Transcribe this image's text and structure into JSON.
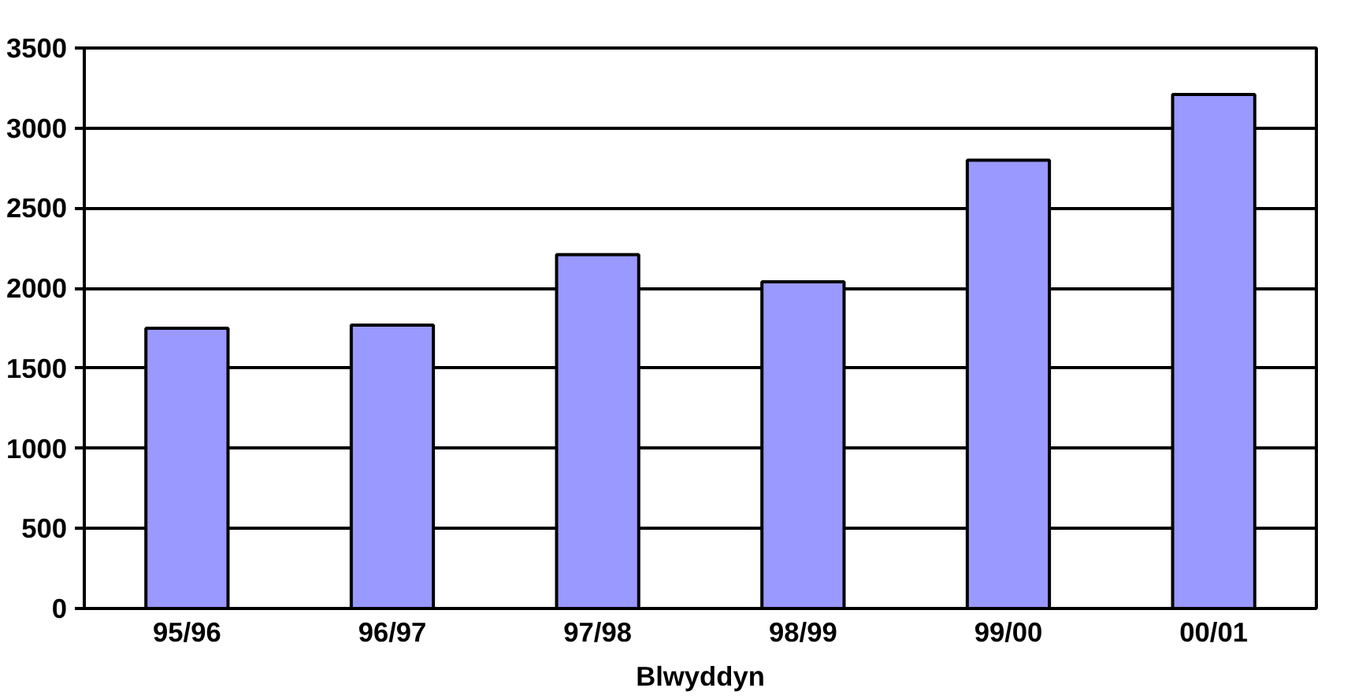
{
  "chart_data": {
    "type": "bar",
    "xlabel": "Blwyddyn",
    "categories": [
      "95/96",
      "96/97",
      "97/98",
      "98/99",
      "99/00",
      "00/01"
    ],
    "values": [
      1750,
      1770,
      2210,
      2040,
      2800,
      3210
    ],
    "color": "#9999ff",
    "ylim": [
      0,
      3500
    ],
    "yticks": [
      0,
      500,
      1000,
      1500,
      2000,
      2500,
      3000,
      3500
    ],
    "grid": "y"
  }
}
